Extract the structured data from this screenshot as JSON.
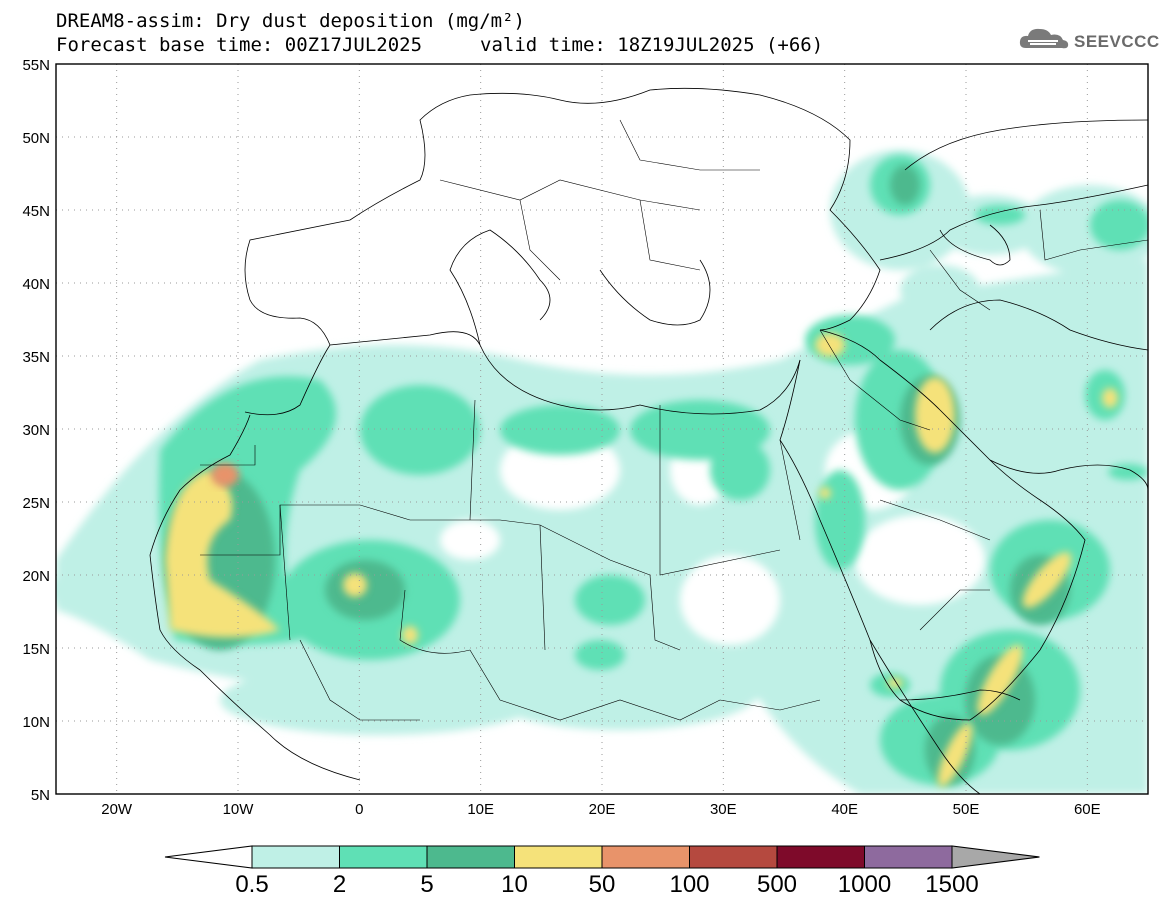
{
  "title": {
    "line1": "DREAM8-assim: Dry dust deposition (mg/m²)",
    "line2_left": "Forecast base time: 00Z17JUL2025",
    "line2_right": "valid time: 18Z19JUL2025 (+66)"
  },
  "logo": {
    "text": "SEEVCCC",
    "icon": "cloud-icon"
  },
  "map": {
    "lat_labels": [
      "55N",
      "50N",
      "45N",
      "40N",
      "35N",
      "30N",
      "25N",
      "20N",
      "15N",
      "10N",
      "5N"
    ],
    "lon_labels": [
      "20W",
      "10W",
      "0",
      "10E",
      "20E",
      "30E",
      "40E",
      "50E",
      "60E"
    ],
    "lat_values": [
      55,
      50,
      45,
      40,
      35,
      30,
      25,
      20,
      15,
      10,
      5
    ],
    "lon_values": [
      -20,
      -10,
      0,
      10,
      20,
      30,
      40,
      50,
      60
    ],
    "extent": {
      "lon_min": -25,
      "lon_max": 65,
      "lat_min": 5,
      "lat_max": 55
    },
    "grid": true
  },
  "colorbar": {
    "labels": [
      "0.5",
      "2",
      "5",
      "10",
      "50",
      "100",
      "500",
      "1000",
      "1500"
    ],
    "colors": [
      "#bff0e6",
      "#5fe0b5",
      "#4db98e",
      "#f5e27a",
      "#e8936a",
      "#b5493f",
      "#7e0a2a",
      "#8e6a9e",
      "#a8a8a8"
    ],
    "under_color": "#ffffff"
  }
}
